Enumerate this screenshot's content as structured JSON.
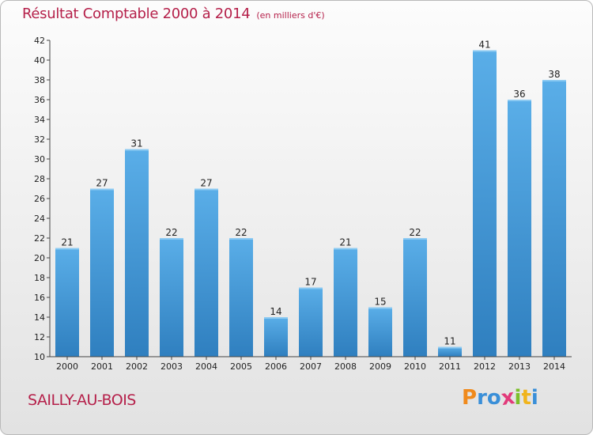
{
  "chart_data": {
    "type": "bar",
    "title": "Résultat Comptable 2000 à 2014",
    "subtitle": "(en milliers d'€)",
    "categories": [
      "2000",
      "2001",
      "2002",
      "2003",
      "2004",
      "2005",
      "2006",
      "2007",
      "2008",
      "2009",
      "2010",
      "2011",
      "2012",
      "2013",
      "2014"
    ],
    "values": [
      21,
      27,
      31,
      22,
      27,
      22,
      14,
      17,
      21,
      15,
      22,
      11,
      41,
      36,
      38
    ],
    "ylim": [
      10,
      42
    ],
    "yticks": [
      10,
      12,
      14,
      16,
      18,
      20,
      22,
      24,
      26,
      28,
      30,
      32,
      34,
      36,
      38,
      40,
      42
    ],
    "xlabel": "",
    "ylabel": "",
    "grid": false,
    "bar_color_top": "#5aaee8",
    "bar_color_bottom": "#2f7fbf"
  },
  "place_name": "SAILLY-AU-BOIS",
  "logo": {
    "letters": [
      "P",
      "r",
      "o",
      "x",
      "i",
      "t",
      "i"
    ],
    "colors": [
      "#f08a1c",
      "#3a8fd8",
      "#3a8fd8",
      "#e23a7a",
      "#7cbf2a",
      "#f0b41c",
      "#3a8fd8"
    ]
  }
}
